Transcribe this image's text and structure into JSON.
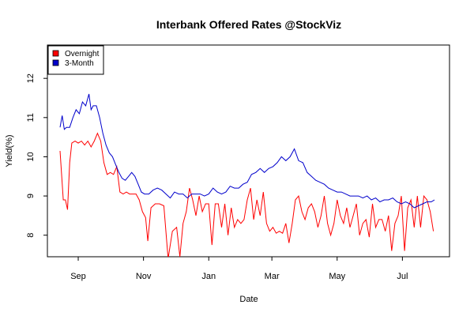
{
  "chart_data": {
    "type": "line",
    "title": "Interbank Offered Rates @StockViz",
    "xlabel": "Date",
    "ylabel": "Yield(%)",
    "x_ticks": [
      "Sep",
      "Nov",
      "Jan",
      "Mar",
      "May",
      "Jul"
    ],
    "y_ticks": [
      8,
      9,
      10,
      11,
      12
    ],
    "ylim": [
      7.45,
      12.85
    ],
    "grid": false,
    "legend_position": "top-left",
    "colors": {
      "Overnight": "#ff0000",
      "3-Month": "#0000cc"
    },
    "series": [
      {
        "name": "Overnight",
        "x": [
          "2013-08-15",
          "2013-08-18",
          "2013-08-20",
          "2013-08-22",
          "2013-08-24",
          "2013-08-26",
          "2013-08-29",
          "2013-09-01",
          "2013-09-04",
          "2013-09-07",
          "2013-09-10",
          "2013-09-13",
          "2013-09-16",
          "2013-09-19",
          "2013-09-22",
          "2013-09-25",
          "2013-09-28",
          "2013-10-01",
          "2013-10-04",
          "2013-10-07",
          "2013-10-10",
          "2013-10-13",
          "2013-10-16",
          "2013-10-19",
          "2013-10-22",
          "2013-10-25",
          "2013-10-28",
          "2013-10-31",
          "2013-11-03",
          "2013-11-05",
          "2013-11-08",
          "2013-11-12",
          "2013-11-16",
          "2013-11-20",
          "2013-11-24",
          "2013-11-28",
          "2013-12-02",
          "2013-12-05",
          "2013-12-08",
          "2013-12-11",
          "2013-12-14",
          "2013-12-17",
          "2013-12-20",
          "2013-12-23",
          "2013-12-26",
          "2013-12-29",
          "2014-01-01",
          "2014-01-04",
          "2014-01-07",
          "2014-01-10",
          "2014-01-13",
          "2014-01-16",
          "2014-01-19",
          "2014-01-22",
          "2014-01-25",
          "2014-01-28",
          "2014-01-31",
          "2014-02-03",
          "2014-02-06",
          "2014-02-09",
          "2014-02-12",
          "2014-02-15",
          "2014-02-18",
          "2014-02-21",
          "2014-02-24",
          "2014-02-27",
          "2014-03-02",
          "2014-03-05",
          "2014-03-08",
          "2014-03-11",
          "2014-03-14",
          "2014-03-17",
          "2014-03-20",
          "2014-03-23",
          "2014-03-26",
          "2014-03-29",
          "2014-04-01",
          "2014-04-04",
          "2014-04-07",
          "2014-04-10",
          "2014-04-13",
          "2014-04-16",
          "2014-04-19",
          "2014-04-22",
          "2014-04-25",
          "2014-04-28",
          "2014-05-01",
          "2014-05-04",
          "2014-05-07",
          "2014-05-10",
          "2014-05-13",
          "2014-05-16",
          "2014-05-19",
          "2014-05-22",
          "2014-05-25",
          "2014-05-28",
          "2014-05-31",
          "2014-06-03",
          "2014-06-06",
          "2014-06-09",
          "2014-06-12",
          "2014-06-15",
          "2014-06-18",
          "2014-06-21",
          "2014-06-24",
          "2014-06-27",
          "2014-06-30",
          "2014-07-03",
          "2014-07-06",
          "2014-07-09",
          "2014-07-12",
          "2014-07-15",
          "2014-07-18",
          "2014-07-21",
          "2014-07-24",
          "2014-07-27",
          "2014-07-30"
        ],
        "values": [
          10.15,
          8.9,
          8.9,
          8.65,
          9.85,
          10.35,
          10.4,
          10.35,
          10.4,
          10.3,
          10.4,
          10.25,
          10.4,
          10.6,
          10.4,
          9.85,
          9.55,
          9.6,
          9.55,
          9.75,
          9.1,
          9.05,
          9.1,
          9.05,
          9.05,
          9.05,
          8.9,
          8.6,
          8.45,
          7.85,
          8.7,
          8.8,
          8.8,
          8.75,
          7.4,
          8.1,
          8.2,
          7.45,
          8.3,
          8.6,
          9.2,
          8.9,
          8.5,
          9.0,
          8.6,
          8.8,
          8.8,
          7.75,
          8.8,
          8.8,
          8.2,
          8.8,
          8.0,
          8.7,
          8.2,
          8.4,
          8.3,
          8.4,
          8.9,
          9.2,
          8.4,
          8.9,
          8.5,
          9.1,
          8.3,
          8.1,
          8.2,
          8.05,
          8.1,
          8.05,
          8.3,
          7.8,
          8.3,
          8.9,
          9.0,
          8.6,
          8.4,
          8.7,
          8.8,
          8.6,
          8.2,
          8.5,
          9.0,
          8.3,
          8.0,
          8.3,
          8.9,
          8.5,
          8.3,
          8.7,
          8.2,
          8.5,
          8.8,
          8.0,
          8.3,
          8.4,
          7.95,
          8.8,
          8.2,
          8.4,
          8.4,
          8.1,
          8.5,
          7.6,
          8.3,
          8.5,
          9.0,
          7.6,
          8.7,
          8.9,
          8.2,
          9.0,
          8.2,
          9.0,
          8.9,
          8.6,
          8.1
        ]
      },
      {
        "name": "3-Month",
        "x": [
          "2013-08-15",
          "2013-08-17",
          "2013-08-19",
          "2013-08-21",
          "2013-08-24",
          "2013-08-27",
          "2013-08-30",
          "2013-09-02",
          "2013-09-05",
          "2013-09-08",
          "2013-09-11",
          "2013-09-13",
          "2013-09-15",
          "2013-09-18",
          "2013-09-21",
          "2013-09-24",
          "2013-09-27",
          "2013-09-30",
          "2013-10-03",
          "2013-10-06",
          "2013-10-09",
          "2013-10-12",
          "2013-10-15",
          "2013-10-18",
          "2013-10-21",
          "2013-10-24",
          "2013-10-27",
          "2013-10-30",
          "2013-11-02",
          "2013-11-06",
          "2013-11-10",
          "2013-11-14",
          "2013-11-18",
          "2013-11-22",
          "2013-11-26",
          "2013-11-30",
          "2013-12-04",
          "2013-12-08",
          "2013-12-12",
          "2013-12-16",
          "2013-12-20",
          "2013-12-24",
          "2013-12-28",
          "2014-01-01",
          "2014-01-05",
          "2014-01-09",
          "2014-01-13",
          "2014-01-17",
          "2014-01-21",
          "2014-01-25",
          "2014-01-29",
          "2014-02-02",
          "2014-02-06",
          "2014-02-10",
          "2014-02-14",
          "2014-02-18",
          "2014-02-22",
          "2014-02-26",
          "2014-03-02",
          "2014-03-06",
          "2014-03-10",
          "2014-03-14",
          "2014-03-18",
          "2014-03-22",
          "2014-03-26",
          "2014-03-30",
          "2014-04-03",
          "2014-04-07",
          "2014-04-11",
          "2014-04-15",
          "2014-04-19",
          "2014-04-23",
          "2014-04-27",
          "2014-05-01",
          "2014-05-05",
          "2014-05-09",
          "2014-05-13",
          "2014-05-17",
          "2014-05-21",
          "2014-05-25",
          "2014-05-29",
          "2014-06-02",
          "2014-06-06",
          "2014-06-10",
          "2014-06-14",
          "2014-06-18",
          "2014-06-22",
          "2014-06-26",
          "2014-06-30",
          "2014-07-04",
          "2014-07-08",
          "2014-07-12",
          "2014-07-16",
          "2014-07-20",
          "2014-07-24",
          "2014-07-28",
          "2014-07-31"
        ],
        "values": [
          10.75,
          11.05,
          10.7,
          10.75,
          10.75,
          11.0,
          11.2,
          11.1,
          11.4,
          11.3,
          11.6,
          11.2,
          11.3,
          11.3,
          11.0,
          10.6,
          10.3,
          10.1,
          10.0,
          9.8,
          9.6,
          9.45,
          9.4,
          9.5,
          9.6,
          9.5,
          9.3,
          9.1,
          9.05,
          9.05,
          9.15,
          9.2,
          9.15,
          9.05,
          8.95,
          9.1,
          9.05,
          9.05,
          8.95,
          9.05,
          9.05,
          9.05,
          9.0,
          9.05,
          9.2,
          9.1,
          9.05,
          9.1,
          9.25,
          9.2,
          9.2,
          9.3,
          9.35,
          9.55,
          9.6,
          9.7,
          9.6,
          9.7,
          9.75,
          9.85,
          10.0,
          9.9,
          10.0,
          10.2,
          9.9,
          9.85,
          9.6,
          9.5,
          9.4,
          9.35,
          9.3,
          9.2,
          9.15,
          9.1,
          9.1,
          9.05,
          9.0,
          9.0,
          9.0,
          8.95,
          9.0,
          8.9,
          8.95,
          8.85,
          8.9,
          8.9,
          8.95,
          8.85,
          8.8,
          8.85,
          8.8,
          8.7,
          8.75,
          8.8,
          8.85,
          8.85,
          8.9
        ]
      }
    ]
  }
}
